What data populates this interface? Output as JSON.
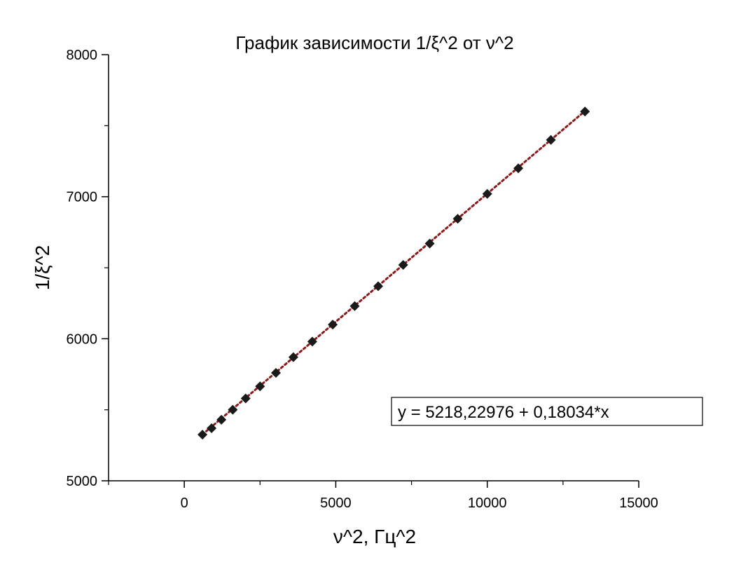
{
  "chart_data": {
    "type": "scatter",
    "title": "График зависимости 1/ξ^2 от ν^2",
    "xlabel": "ν^2, Гц^2",
    "ylabel": "1/ξ^2",
    "xlim": [
      -2500,
      15000
    ],
    "ylim": [
      5000,
      8000
    ],
    "x_ticks": [
      0,
      5000,
      10000,
      15000
    ],
    "x_tick_labels": [
      "0",
      "5000",
      "10000",
      "15000"
    ],
    "y_ticks": [
      5000,
      6000,
      7000,
      8000
    ],
    "y_tick_labels": [
      "5000",
      "6000",
      "7000",
      "8000"
    ],
    "x_minor_step": 2500,
    "y_minor_step": 500,
    "grid": false,
    "series": [
      {
        "marker": "diamond",
        "color": "#1a1a1a",
        "x": [
          600,
          900,
          1225,
          1600,
          2025,
          2500,
          3025,
          3600,
          4225,
          4900,
          5625,
          6400,
          7225,
          8100,
          9025,
          10000,
          11025,
          12100,
          13225
        ],
        "y": [
          5325,
          5370,
          5430,
          5500,
          5580,
          5665,
          5760,
          5870,
          5980,
          6100,
          6230,
          6370,
          6520,
          6670,
          6845,
          7020,
          7200,
          7400,
          7600
        ]
      }
    ],
    "fit": {
      "style": "dotted",
      "color": "#8b1a1a",
      "intercept": 5218.22976,
      "slope": 0.18034,
      "x_range": [
        600,
        13225
      ],
      "equation_label": "y = 5218,22976 + 0,18034*x"
    }
  }
}
